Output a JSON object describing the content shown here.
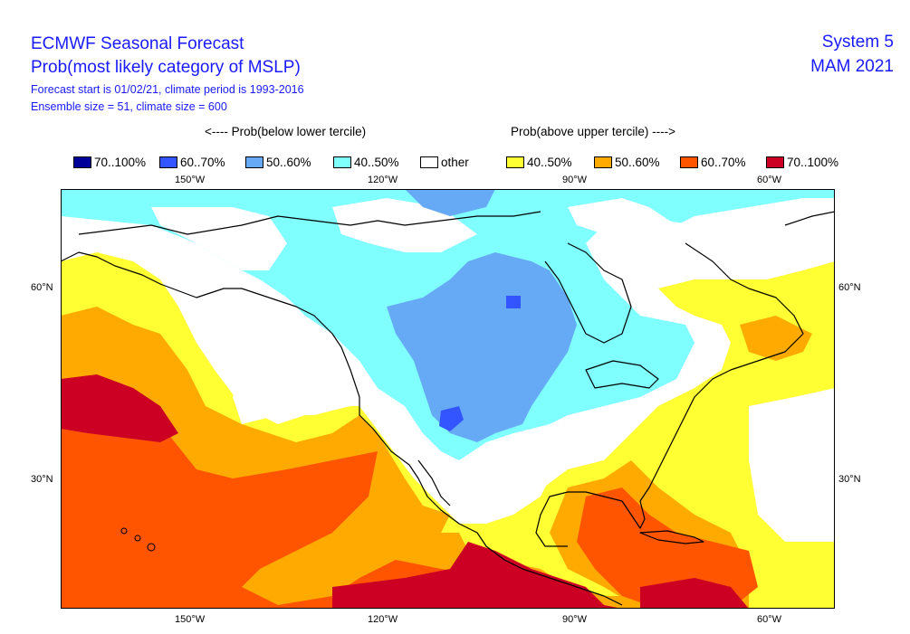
{
  "header": {
    "title_line1": "ECMWF Seasonal Forecast",
    "title_line2": "Prob(most likely category of MSLP)",
    "info_line1": "Forecast start is 01/02/21, climate period is 1993-2016",
    "info_line2": "Ensemble size = 51, climate size = 600",
    "system": "System 5",
    "season": "MAM 2021"
  },
  "legend": {
    "below_heading": "<---- Prob(below lower tercile)",
    "above_heading": "Prob(above upper tercile) ---->",
    "items": [
      {
        "label": "70..100%",
        "color": "#000099"
      },
      {
        "label": "60..70%",
        "color": "#3355ff"
      },
      {
        "label": "50..60%",
        "color": "#66aaf5"
      },
      {
        "label": "40..50%",
        "color": "#80ffff"
      },
      {
        "label": "other",
        "color": "#ffffff"
      },
      {
        "label": "40..50%",
        "color": "#ffff33"
      },
      {
        "label": "50..60%",
        "color": "#ffaa00"
      },
      {
        "label": "60..70%",
        "color": "#ff5500"
      },
      {
        "label": "70..100%",
        "color": "#cc0022"
      }
    ]
  },
  "axes": {
    "lon_labels": [
      "150°W",
      "120°W",
      "90°W",
      "60°W"
    ],
    "lat_labels": [
      "60°N",
      "30°N"
    ]
  }
}
